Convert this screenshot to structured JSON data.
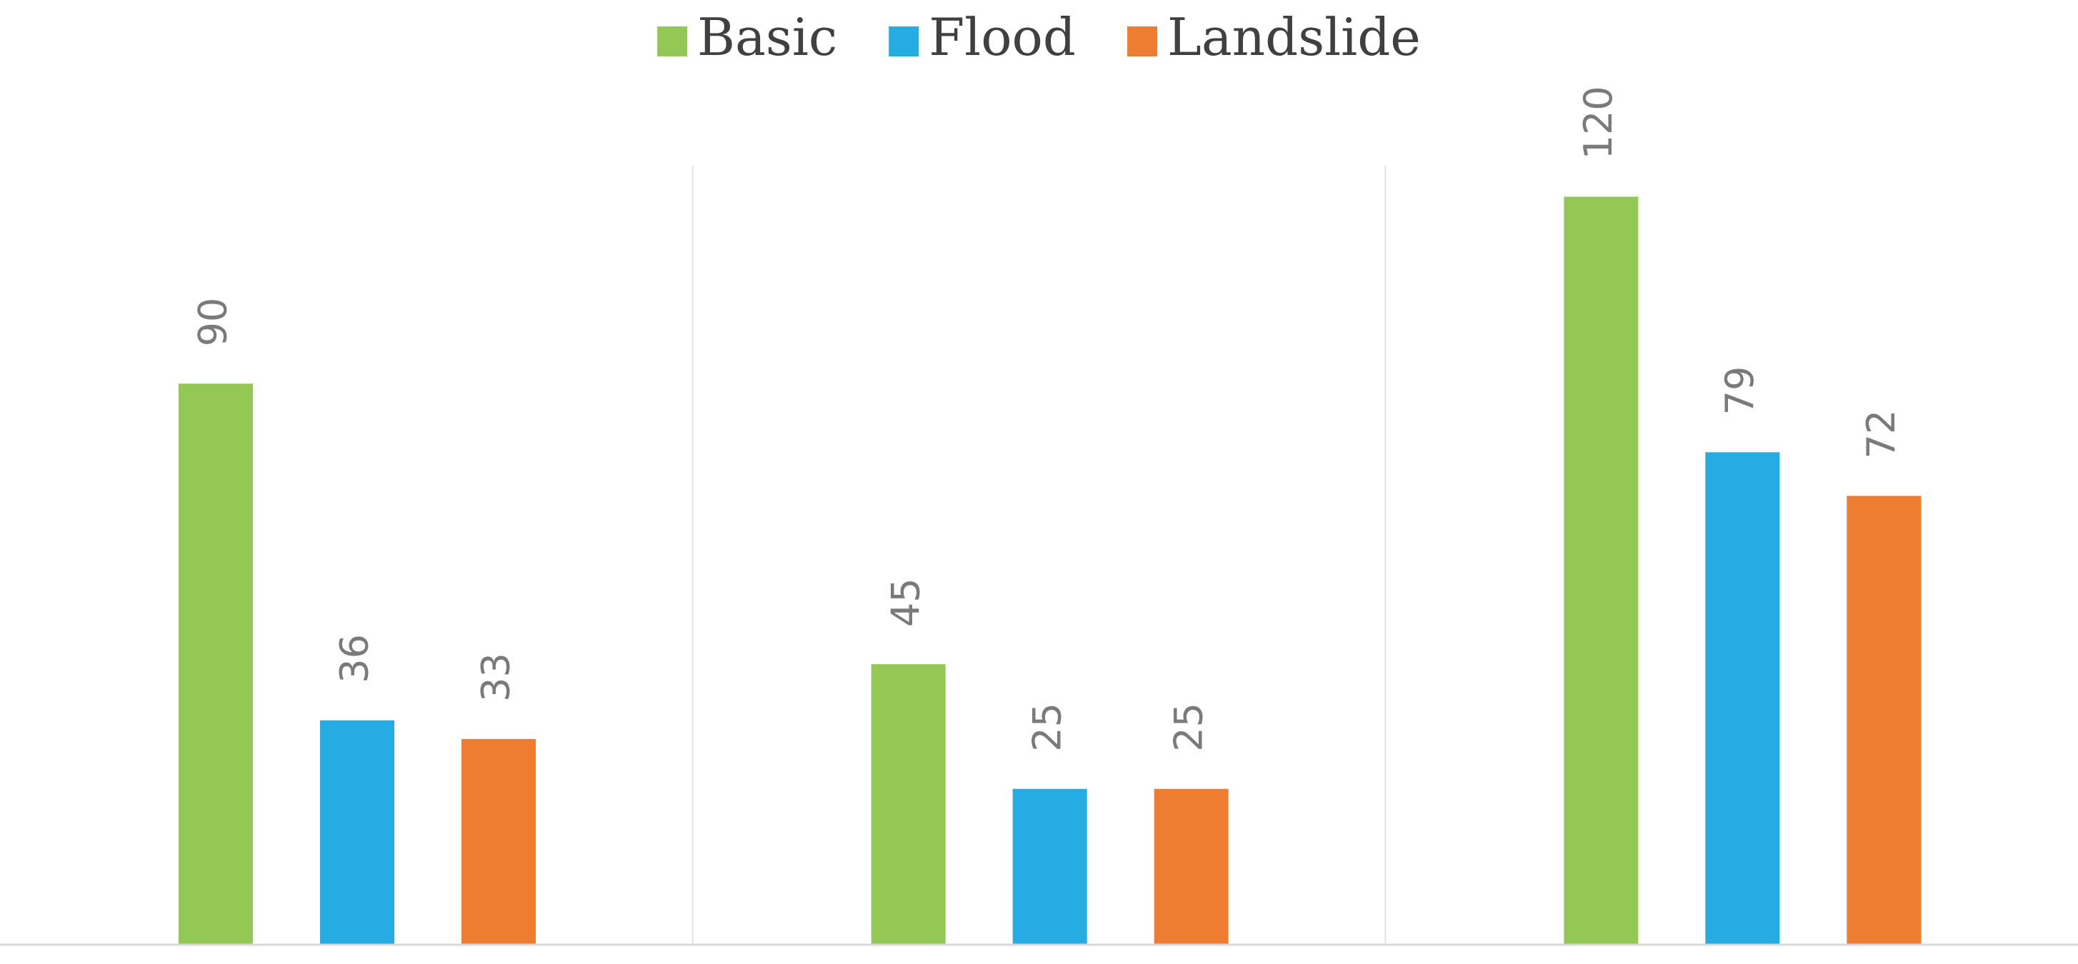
{
  "chart_data": {
    "type": "bar",
    "categories": [
      "",
      "",
      ""
    ],
    "series": [
      {
        "name": "Basic",
        "color": "#92c853",
        "values": [
          90,
          45,
          120
        ]
      },
      {
        "name": "Flood",
        "color": "#25ace2",
        "values": [
          36,
          25,
          79
        ]
      },
      {
        "name": "Landslide",
        "color": "#ee7d31",
        "values": [
          33,
          25,
          72
        ]
      }
    ],
    "ylim": [
      0,
      135
    ],
    "grid": false,
    "category_separators": true,
    "data_labels": true,
    "legend_position": "top-center"
  }
}
